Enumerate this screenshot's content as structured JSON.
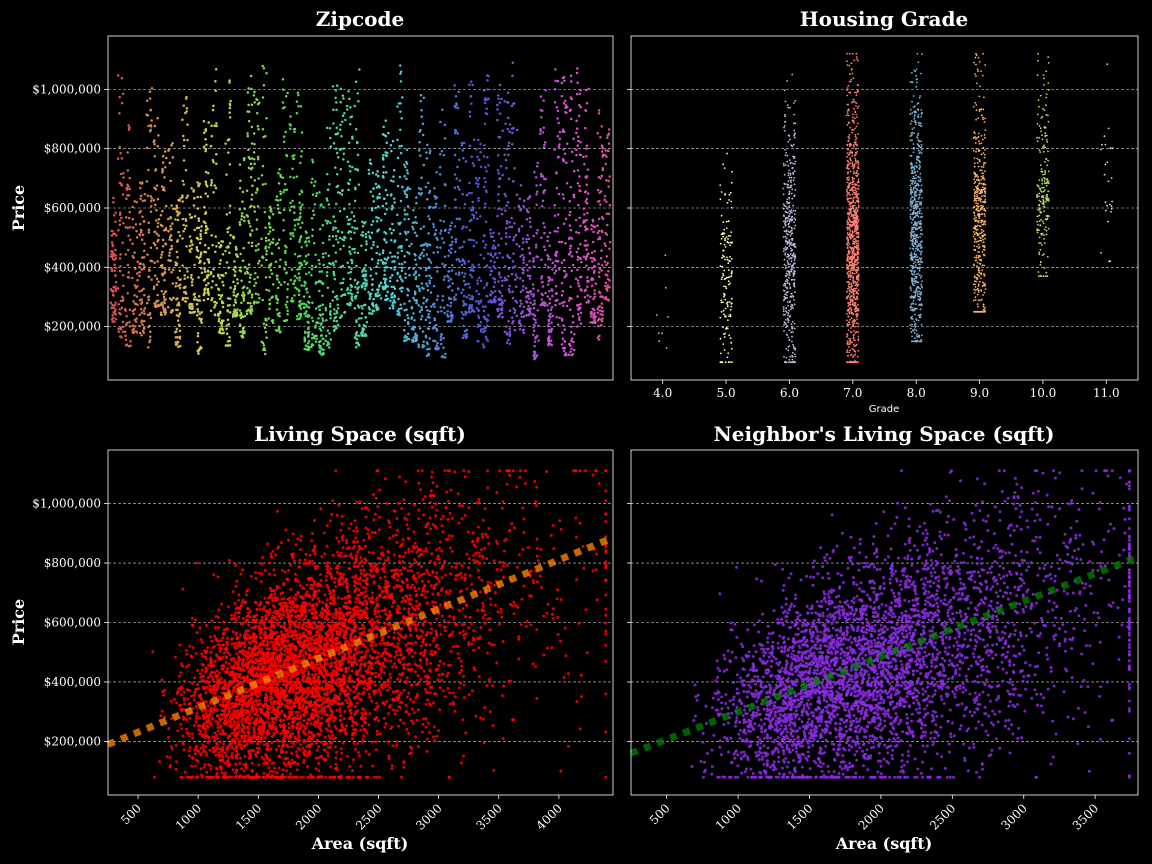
{
  "chart_data": [
    {
      "type": "scatter",
      "panel": "zipcode",
      "title": "Zipcode",
      "xlabel": "",
      "ylabel": "Price",
      "ylim": [
        20000,
        1180000
      ],
      "yticks": [
        200000,
        400000,
        600000,
        800000,
        1000000
      ],
      "ytick_labels": [
        "$200,000",
        "$400,000",
        "$600,000",
        "$800,000",
        "$1,000,000"
      ],
      "x_categories_count": 70,
      "grid": true,
      "legend": "none"
    },
    {
      "type": "scatter",
      "panel": "grade",
      "title": "Housing Grade",
      "xlabel": "Grade",
      "ylabel": "",
      "ylim": [
        20000,
        1180000
      ],
      "categories": [
        "4.0",
        "5.0",
        "6.0",
        "7.0",
        "8.0",
        "9.0",
        "10.0",
        "11.0"
      ],
      "colors": [
        "#8dd3c7",
        "#ffffb3",
        "#bebada",
        "#fb8072",
        "#80b1d3",
        "#fdb462",
        "#b3de69",
        "#fccde5"
      ],
      "ranges": [
        [
          100000,
          440000
        ],
        [
          80000,
          800000
        ],
        [
          80000,
          1050000
        ],
        [
          80000,
          1120000
        ],
        [
          150000,
          1120000
        ],
        [
          250000,
          1120000
        ],
        [
          370000,
          1120000
        ],
        [
          420000,
          1100000
        ]
      ],
      "grid": true
    },
    {
      "type": "scatter",
      "panel": "living",
      "title": "Living Space (sqft)",
      "xlabel": "Area (sqft)",
      "ylabel": "Price",
      "xlim": [
        250,
        4450
      ],
      "ylim": [
        20000,
        1180000
      ],
      "xticks": [
        500,
        1000,
        1500,
        2000,
        2500,
        3000,
        3500,
        4000
      ],
      "color": "#ff0000",
      "trend": {
        "x": [
          250,
          4450
        ],
        "y": [
          190000,
          885000
        ],
        "color": "#ff8c00"
      },
      "grid": true
    },
    {
      "type": "scatter",
      "panel": "neighbor",
      "title": "Neighbor's Living Space (sqft)",
      "xlabel": "Area (sqft)",
      "ylabel": "",
      "xlim": [
        250,
        3800
      ],
      "ylim": [
        20000,
        1180000
      ],
      "xticks": [
        500,
        1000,
        1500,
        2000,
        2500,
        3000,
        3500
      ],
      "color": "#8a2be2",
      "trend": {
        "x": [
          250,
          3800
        ],
        "y": [
          160000,
          820000
        ],
        "color": "#008000"
      },
      "grid": true
    }
  ]
}
